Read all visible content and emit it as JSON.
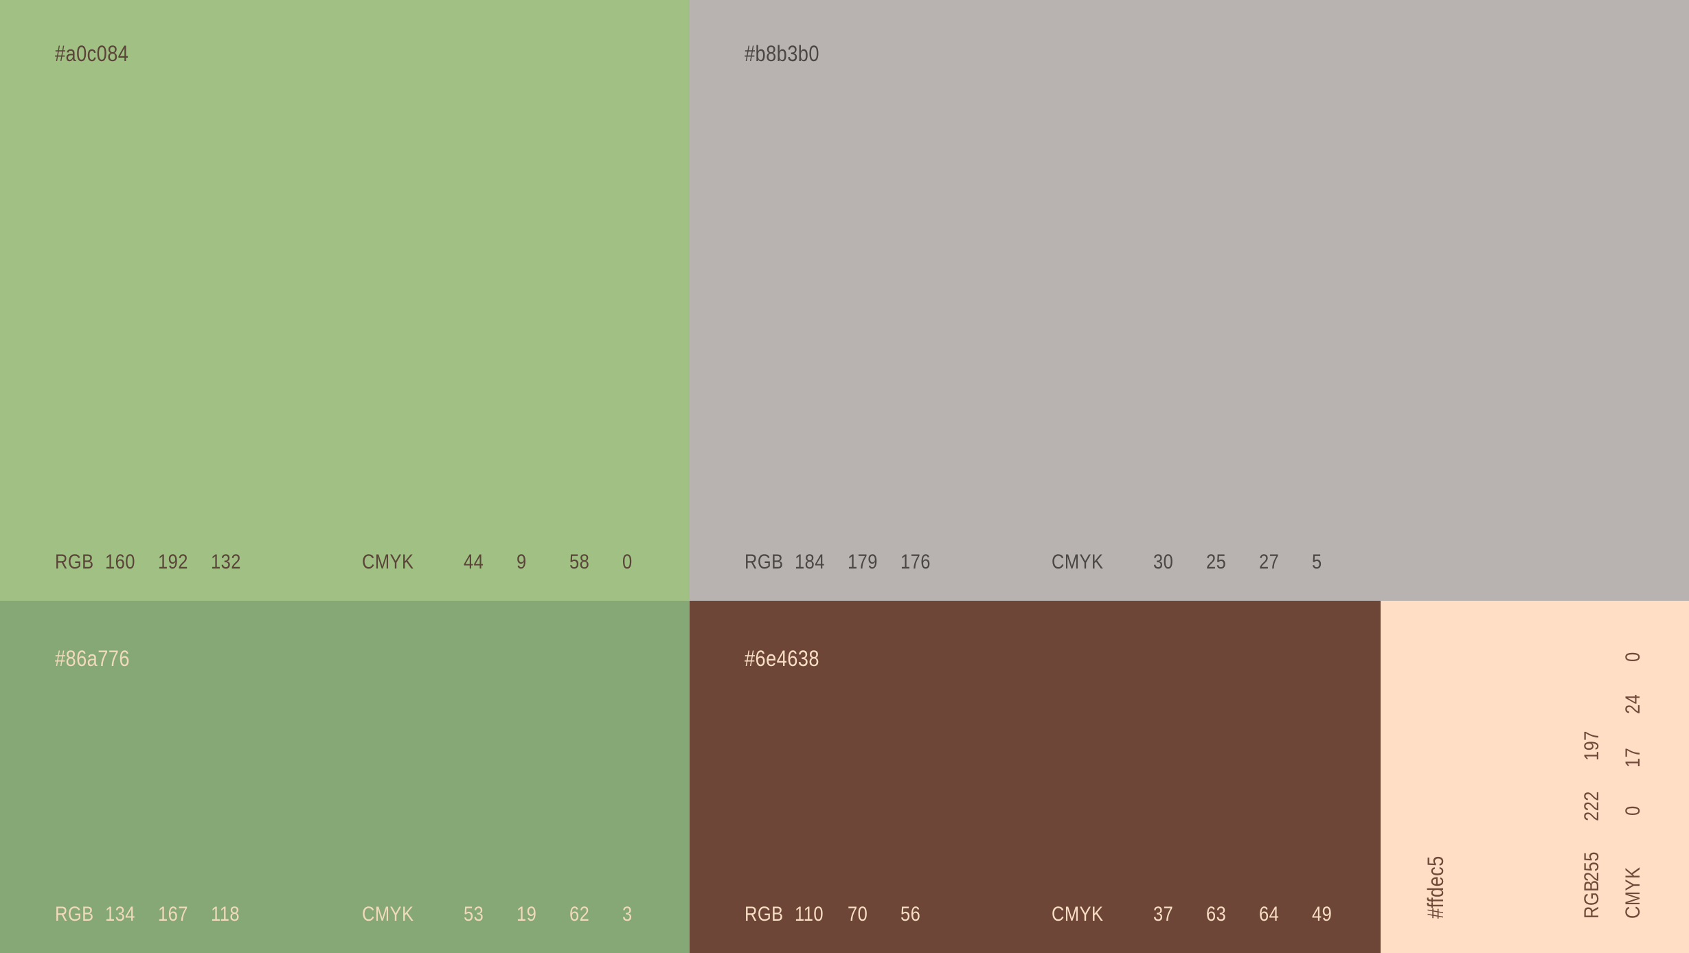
{
  "palette": {
    "labels": {
      "rgb": "RGB",
      "cmyk": "CMYK"
    },
    "swatches": [
      {
        "hex": "#a0c084",
        "bg": "#a0c084",
        "text_color": "#5a4538",
        "rgb": [
          "160",
          "192",
          "132"
        ],
        "cmyk": [
          "44",
          "9",
          "58",
          "0"
        ]
      },
      {
        "hex": "#b8b3b0",
        "bg": "#b8b3b0",
        "text_color": "#4a4744",
        "rgb": [
          "184",
          "179",
          "176"
        ],
        "cmyk": [
          "30",
          "25",
          "27",
          "5"
        ]
      },
      {
        "hex": "#86a776",
        "bg": "#86a776",
        "text_color": "#f1d9bb",
        "rgb": [
          "134",
          "167",
          "118"
        ],
        "cmyk": [
          "53",
          "19",
          "62",
          "3"
        ]
      },
      {
        "hex": "#6e4638",
        "bg": "#6e4638",
        "text_color": "#f6ddc3",
        "rgb": [
          "110",
          "70",
          "56"
        ],
        "cmyk": [
          "37",
          "63",
          "64",
          "49"
        ]
      },
      {
        "hex": "#ffdec5",
        "bg": "#ffdec5",
        "text_color": "#6f4a39",
        "rgb": [
          "255",
          "222",
          "197"
        ],
        "cmyk": [
          "0",
          "17",
          "24",
          "0"
        ],
        "orientation": "rotated-90-ccw"
      }
    ]
  }
}
